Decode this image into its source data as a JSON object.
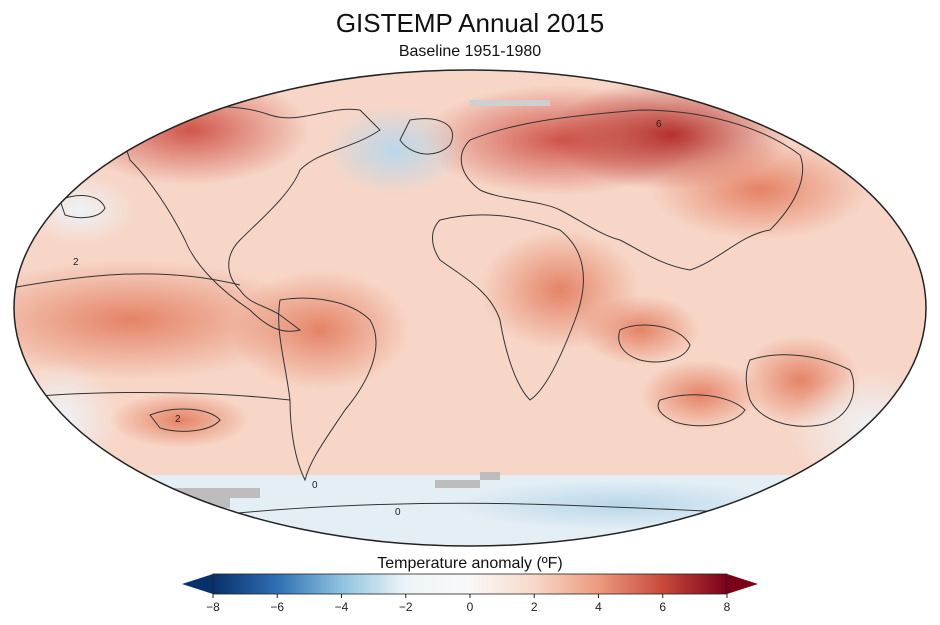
{
  "header": {
    "title": "GISTEMP Annual 2015",
    "subtitle": "Baseline 1951-1980"
  },
  "map": {
    "contour_labels": [
      "6",
      "2",
      "2",
      "0",
      "0"
    ]
  },
  "colorbar": {
    "title": "Temperature anomaly (ºF)",
    "ticks": [
      "−8",
      "−6",
      "−4",
      "−2",
      "0",
      "2",
      "4",
      "6",
      "8"
    ],
    "colors": [
      "#08306b",
      "#2f6fb3",
      "#8ec3e0",
      "#eef4f8",
      "#f9f9f9",
      "#f8d8c8",
      "#ec9a7e",
      "#c94a3a",
      "#7a0018"
    ]
  }
}
